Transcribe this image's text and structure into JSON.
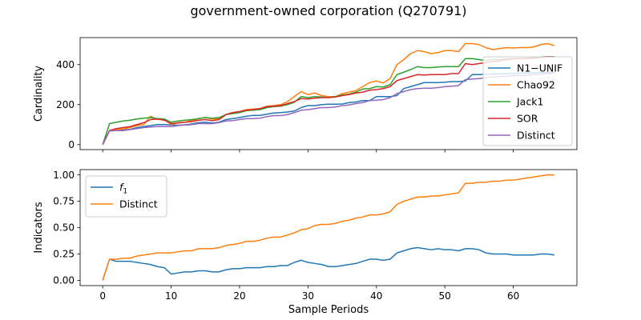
{
  "figure": {
    "title": "government-owned corporation (Q270791)"
  },
  "chart_data": [
    {
      "type": "line",
      "ylabel": "Cardinality",
      "xlabel": "",
      "xlim": [
        -3.3,
        69.3
      ],
      "ylim": [
        -25,
        535
      ],
      "xticks": [
        0,
        10,
        20,
        30,
        40,
        50,
        60
      ],
      "yticks": [
        0,
        200,
        400
      ],
      "show_xticklabels": false,
      "grid": false,
      "legend_position": "center-right",
      "series": [
        {
          "name": "N1−UNIF",
          "color": "#1f77b4",
          "values": [
            0,
            70,
            72,
            73,
            76,
            85,
            90,
            95,
            100,
            100,
            98,
            97,
            99,
            103,
            110,
            112,
            108,
            112,
            125,
            130,
            135,
            142,
            146,
            146,
            152,
            158,
            160,
            163,
            168,
            185,
            195,
            195,
            200,
            202,
            202,
            203,
            210,
            213,
            220,
            220,
            240,
            240,
            240,
            245,
            280,
            290,
            300,
            310,
            310,
            310,
            312,
            315,
            315,
            318,
            350,
            350,
            352,
            353,
            354,
            355,
            356,
            357,
            358,
            359,
            360,
            361,
            362
          ]
        },
        {
          "name": "Chao92",
          "color": "#ff7f0e",
          "values": [
            0,
            70,
            75,
            78,
            85,
            95,
            100,
            142,
            125,
            128,
            100,
            110,
            112,
            120,
            130,
            135,
            128,
            130,
            150,
            160,
            165,
            175,
            178,
            180,
            192,
            195,
            200,
            215,
            240,
            265,
            250,
            258,
            245,
            240,
            240,
            255,
            262,
            270,
            290,
            310,
            318,
            308,
            330,
            400,
            425,
            455,
            470,
            465,
            455,
            460,
            470,
            470,
            465,
            505,
            505,
            500,
            485,
            475,
            480,
            485,
            483,
            485,
            485,
            488,
            500,
            505,
            495
          ]
        },
        {
          "name": "Jack1",
          "color": "#2ca02c",
          "values": [
            0,
            105,
            112,
            118,
            122,
            128,
            132,
            135,
            130,
            128,
            112,
            118,
            122,
            125,
            130,
            135,
            132,
            135,
            150,
            155,
            160,
            170,
            172,
            175,
            185,
            190,
            192,
            200,
            212,
            240,
            235,
            240,
            238,
            235,
            240,
            248,
            252,
            262,
            278,
            280,
            290,
            288,
            300,
            350,
            362,
            375,
            390,
            385,
            385,
            388,
            390,
            390,
            390,
            430,
            430,
            425,
            420,
            425,
            425,
            428,
            430,
            430,
            432,
            435,
            438,
            440,
            440
          ]
        },
        {
          "name": "SOR",
          "color": "#d62728",
          "values": [
            0,
            70,
            80,
            85,
            90,
            100,
            110,
            125,
            128,
            122,
            105,
            108,
            112,
            115,
            122,
            125,
            120,
            125,
            150,
            160,
            165,
            172,
            175,
            180,
            190,
            192,
            195,
            205,
            215,
            230,
            228,
            232,
            235,
            235,
            238,
            245,
            250,
            258,
            262,
            272,
            275,
            280,
            290,
            320,
            330,
            340,
            350,
            348,
            350,
            350,
            350,
            355,
            355,
            405,
            400,
            405,
            410,
            415,
            420,
            425,
            428,
            430,
            430,
            432,
            435,
            440,
            438
          ]
        },
        {
          "name": "Distinct",
          "color": "#9467bd",
          "values": [
            0,
            68,
            70,
            70,
            75,
            80,
            85,
            88,
            90,
            90,
            90,
            95,
            98,
            100,
            105,
            105,
            105,
            110,
            118,
            120,
            125,
            130,
            130,
            132,
            140,
            145,
            145,
            150,
            160,
            172,
            175,
            180,
            185,
            185,
            188,
            195,
            198,
            205,
            210,
            220,
            222,
            225,
            235,
            255,
            265,
            275,
            280,
            282,
            282,
            285,
            290,
            292,
            295,
            325,
            328,
            330,
            335,
            338,
            340,
            342,
            345,
            345,
            348,
            350,
            352,
            355,
            358
          ]
        }
      ]
    },
    {
      "type": "line",
      "ylabel": "Indicators",
      "xlabel": "Sample Periods",
      "xlim": [
        -3.3,
        69.3
      ],
      "ylim": [
        -0.05,
        1.05
      ],
      "xticks": [
        0,
        10,
        20,
        30,
        40,
        50,
        60
      ],
      "yticks": [
        0.0,
        0.25,
        0.5,
        0.75,
        1.0
      ],
      "ytick_labels": [
        "0.00",
        "0.25",
        "0.50",
        "0.75",
        "1.00"
      ],
      "show_xticklabels": true,
      "grid": false,
      "legend_position": "upper-left",
      "series": [
        {
          "name": "f1",
          "color": "#1f77b4",
          "values": [
            0,
            0.2,
            0.18,
            0.18,
            0.18,
            0.17,
            0.16,
            0.15,
            0.13,
            0.12,
            0.06,
            0.07,
            0.08,
            0.08,
            0.09,
            0.09,
            0.08,
            0.08,
            0.1,
            0.11,
            0.11,
            0.12,
            0.12,
            0.12,
            0.13,
            0.13,
            0.14,
            0.14,
            0.17,
            0.19,
            0.17,
            0.16,
            0.15,
            0.13,
            0.13,
            0.14,
            0.15,
            0.16,
            0.18,
            0.2,
            0.2,
            0.19,
            0.2,
            0.26,
            0.28,
            0.3,
            0.31,
            0.3,
            0.29,
            0.3,
            0.29,
            0.29,
            0.28,
            0.3,
            0.3,
            0.29,
            0.26,
            0.25,
            0.25,
            0.25,
            0.24,
            0.24,
            0.24,
            0.24,
            0.25,
            0.25,
            0.24
          ]
        },
        {
          "name": "Distinct",
          "color": "#ff7f0e",
          "values": [
            0,
            0.2,
            0.2,
            0.21,
            0.21,
            0.23,
            0.24,
            0.25,
            0.26,
            0.26,
            0.26,
            0.27,
            0.28,
            0.28,
            0.3,
            0.3,
            0.3,
            0.31,
            0.33,
            0.34,
            0.35,
            0.37,
            0.37,
            0.38,
            0.4,
            0.41,
            0.41,
            0.43,
            0.45,
            0.48,
            0.49,
            0.52,
            0.53,
            0.53,
            0.54,
            0.56,
            0.57,
            0.59,
            0.6,
            0.62,
            0.62,
            0.63,
            0.65,
            0.72,
            0.75,
            0.77,
            0.79,
            0.79,
            0.8,
            0.8,
            0.81,
            0.82,
            0.83,
            0.92,
            0.92,
            0.93,
            0.93,
            0.94,
            0.94,
            0.95,
            0.95,
            0.96,
            0.97,
            0.98,
            0.99,
            1.0,
            1.0
          ]
        }
      ]
    }
  ]
}
